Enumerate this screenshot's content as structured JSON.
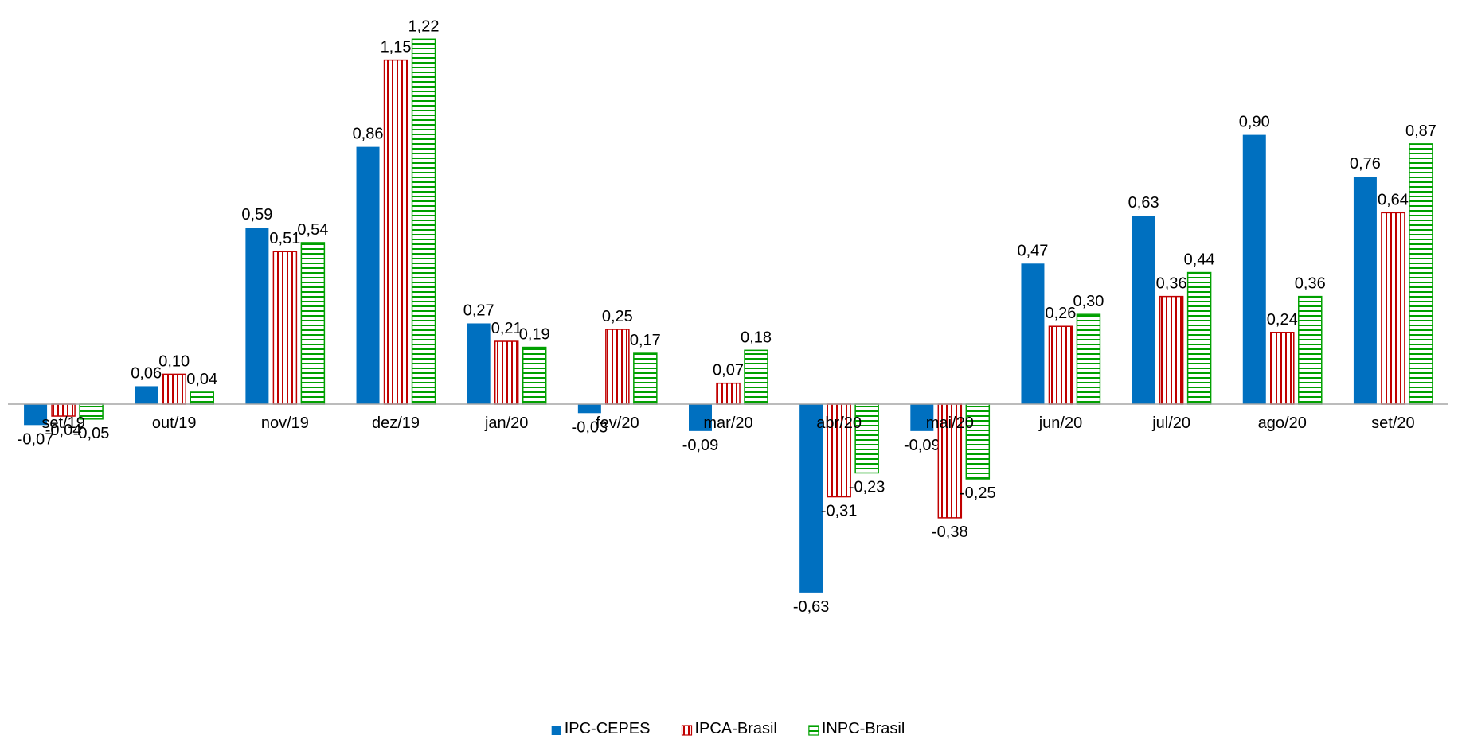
{
  "chart_data": {
    "type": "bar",
    "categories": [
      "set/19",
      "out/19",
      "nov/19",
      "dez/19",
      "jan/20",
      "fev/20",
      "mar/20",
      "abr/20",
      "mai/20",
      "jun/20",
      "jul/20",
      "ago/20",
      "set/20"
    ],
    "series": [
      {
        "name": "IPC-CEPES",
        "color": "#0070c0",
        "pattern": "solid",
        "values": [
          -0.07,
          0.06,
          0.59,
          0.86,
          0.27,
          -0.03,
          -0.09,
          -0.63,
          -0.09,
          0.47,
          0.63,
          0.9,
          0.76
        ],
        "value_labels": [
          "-0,07",
          "0,06",
          "0,59",
          "0,86",
          "0,27",
          "-0,03",
          "-0,09",
          "-0,63",
          "-0,09",
          "0,47",
          "0,63",
          "0,90",
          "0,76"
        ]
      },
      {
        "name": "IPCA-Brasil",
        "color": "#c00000",
        "pattern": "vertical",
        "values": [
          -0.04,
          0.1,
          0.51,
          1.15,
          0.21,
          0.25,
          0.07,
          -0.31,
          -0.38,
          0.26,
          0.36,
          0.24,
          0.64
        ],
        "value_labels": [
          "-0,04",
          "0,10",
          "0,51",
          "1,15",
          "0,21",
          "0,25",
          "0,07",
          "-0,31",
          "-0,38",
          "0,26",
          "0,36",
          "0,24",
          "0,64"
        ]
      },
      {
        "name": "INPC-Brasil",
        "color": "#00a000",
        "pattern": "horizontal",
        "values": [
          -0.05,
          0.04,
          0.54,
          1.22,
          0.19,
          0.17,
          0.18,
          -0.23,
          -0.25,
          0.3,
          0.44,
          0.36,
          0.87
        ],
        "value_labels": [
          "-0,05",
          "0,04",
          "0,54",
          "1,22",
          "0,19",
          "0,17",
          "0,18",
          "-0,23",
          "-0,25",
          "0,30",
          "0,44",
          "0,36",
          "0,87"
        ]
      }
    ],
    "legend": "bottom"
  }
}
